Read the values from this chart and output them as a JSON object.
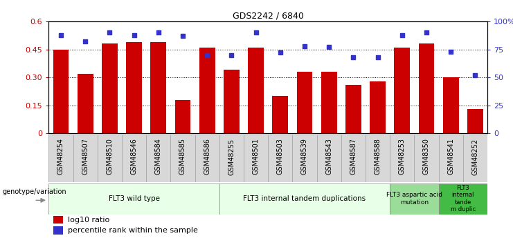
{
  "title": "GDS2242 / 6840",
  "samples": [
    "GSM48254",
    "GSM48507",
    "GSM48510",
    "GSM48546",
    "GSM48584",
    "GSM48585",
    "GSM48586",
    "GSM48255",
    "GSM48501",
    "GSM48503",
    "GSM48539",
    "GSM48543",
    "GSM48587",
    "GSM48588",
    "GSM48253",
    "GSM48350",
    "GSM48541",
    "GSM48252"
  ],
  "log10_ratio": [
    0.45,
    0.32,
    0.48,
    0.49,
    0.49,
    0.18,
    0.46,
    0.34,
    0.46,
    0.2,
    0.33,
    0.33,
    0.26,
    0.28,
    0.46,
    0.48,
    0.3,
    0.13
  ],
  "percentile_rank": [
    88,
    82,
    90,
    88,
    90,
    87,
    70,
    70,
    90,
    72,
    78,
    77,
    68,
    68,
    88,
    90,
    73,
    52
  ],
  "bar_color": "#cc0000",
  "dot_color": "#3333cc",
  "ylim_left": [
    0,
    0.6
  ],
  "ylim_right": [
    0,
    100
  ],
  "yticks_left": [
    0,
    0.15,
    0.3,
    0.45,
    0.6
  ],
  "yticks_right": [
    0,
    25,
    50,
    75,
    100
  ],
  "ytick_labels_left": [
    "0",
    "0.15",
    "0.30",
    "0.45",
    "0.6"
  ],
  "ytick_labels_right": [
    "0",
    "25",
    "50",
    "75",
    "100%"
  ],
  "groups": [
    {
      "label": "FLT3 wild type",
      "start": 0,
      "end": 7,
      "color": "#e8ffe8"
    },
    {
      "label": "FLT3 internal tandem duplications",
      "start": 7,
      "end": 14,
      "color": "#e8ffe8"
    },
    {
      "label": "FLT3 aspartic acid\nmutation",
      "start": 14,
      "end": 16,
      "color": "#99dd99"
    },
    {
      "label": "FLT3\ninternal\ntande\nm duplic",
      "start": 16,
      "end": 18,
      "color": "#44bb44"
    }
  ],
  "legend_label_ratio": "log10 ratio",
  "legend_label_pct": "percentile rank within the sample",
  "genotype_label": "genotype/variation",
  "tick_label_bg": "#d8d8d8",
  "tick_label_edgecolor": "#aaaaaa"
}
